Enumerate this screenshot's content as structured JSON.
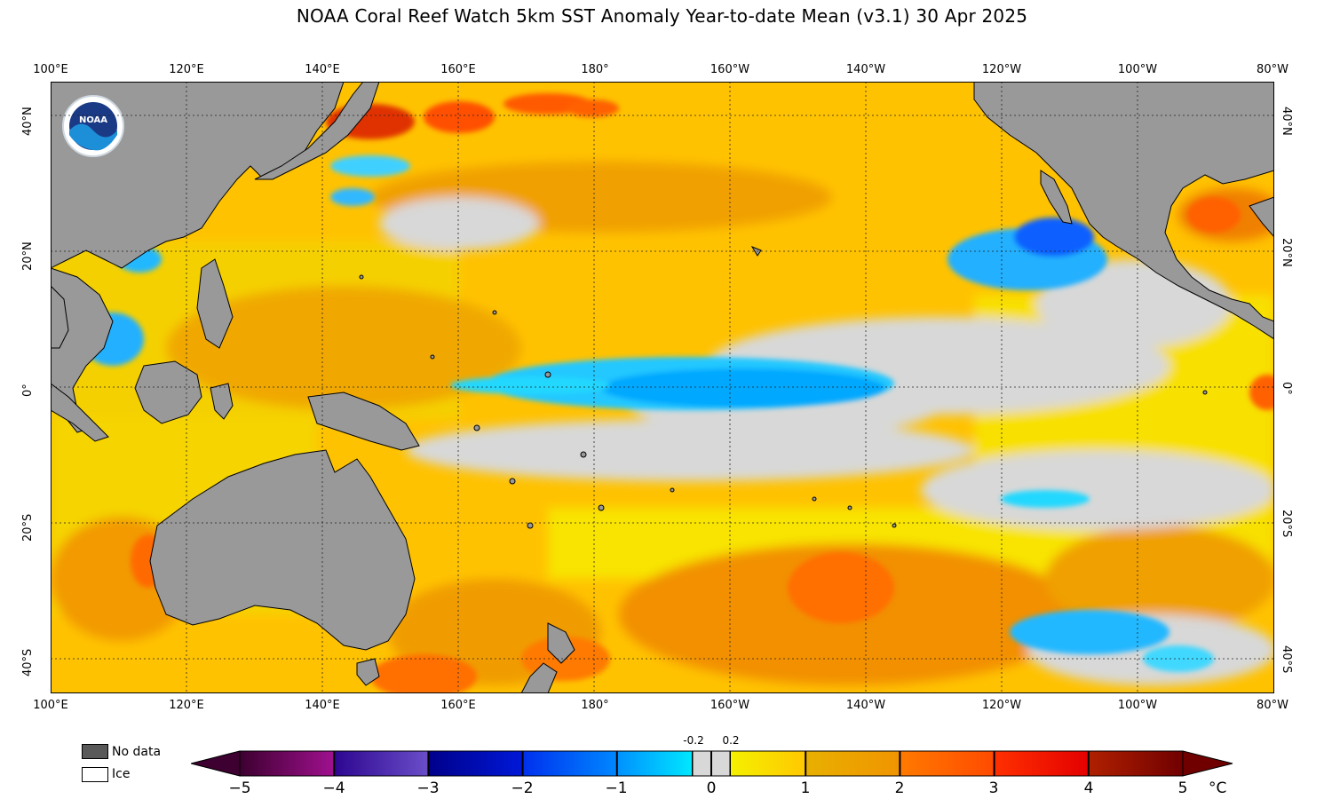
{
  "title": "NOAA Coral Reef Watch 5km SST Anomaly Year-to-date Mean  (v3.1)   30 Apr 2025",
  "map": {
    "lon_labels": [
      "100°E",
      "120°E",
      "140°E",
      "160°E",
      "180°",
      "160°W",
      "140°W",
      "120°W",
      "100°W",
      "80°W"
    ],
    "lat_labels": [
      "40°N",
      "20°N",
      "0°",
      "20°S",
      "40°S"
    ],
    "land_color": "#999999",
    "nodata_color": "#595959",
    "logo_text": "NOAA"
  },
  "legend": {
    "nodata_label": "No data",
    "ice_label": "Ice",
    "nodata_color": "#595959",
    "ice_color": "#ffffff"
  },
  "colorbar": {
    "ticks": [
      "−5",
      "−4",
      "−3",
      "−2",
      "−1",
      "0",
      "1",
      "2",
      "3",
      "4",
      "5"
    ],
    "small_ticks": [
      "-0.2",
      "0.2"
    ],
    "unit": "°C",
    "stops": [
      {
        "from": -5,
        "to": -4,
        "c1": "#3d0030",
        "c2": "#a0108f"
      },
      {
        "from": -4,
        "to": -3,
        "c1": "#2d0690",
        "c2": "#6a4ec8"
      },
      {
        "from": -3,
        "to": -2,
        "c1": "#00008a",
        "c2": "#0018d8"
      },
      {
        "from": -2,
        "to": -1,
        "c1": "#0030ee",
        "c2": "#0088ff"
      },
      {
        "from": -1,
        "to": -0.2,
        "c1": "#0090ff",
        "c2": "#00e8ff"
      },
      {
        "from": -0.2,
        "to": 0.2,
        "c1": "#d8d8d8",
        "c2": "#d8d8d8"
      },
      {
        "from": 0.2,
        "to": 1,
        "c1": "#f5f000",
        "c2": "#ffc800"
      },
      {
        "from": 1,
        "to": 2,
        "c1": "#e8b000",
        "c2": "#f09400"
      },
      {
        "from": 2,
        "to": 3,
        "c1": "#ff7a00",
        "c2": "#ff4a00"
      },
      {
        "from": 3,
        "to": 4,
        "c1": "#ff3000",
        "c2": "#e40000"
      },
      {
        "from": 4,
        "to": 5,
        "c1": "#b02000",
        "c2": "#700000"
      }
    ]
  }
}
